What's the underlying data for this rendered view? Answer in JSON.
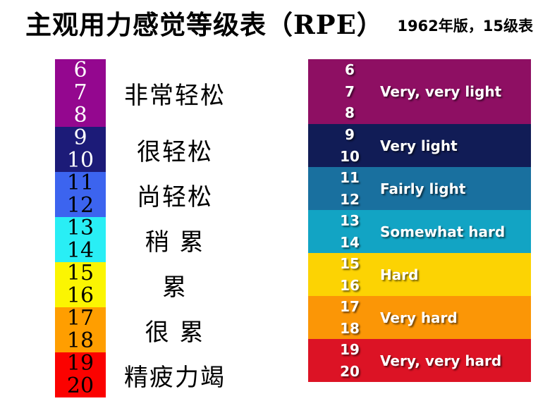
{
  "title": "主观用力感觉等级表（RPE）",
  "subtitle": "1962年版，15级表",
  "left_scale": {
    "description": "Chinese RPE scale column, ratings 6-20",
    "bands": [
      {
        "color": "#94078F",
        "number_color": "#FFFFFF",
        "numbers": [
          "6",
          "7",
          "8"
        ],
        "label": "非常轻松"
      },
      {
        "color": "#1C1B78",
        "number_color": "#FFFFFF",
        "numbers": [
          "9",
          "10"
        ],
        "label": "很轻松"
      },
      {
        "color": "#3C64EF",
        "number_color": "#000000",
        "numbers": [
          "11",
          "12"
        ],
        "label": "尚轻松"
      },
      {
        "color": "#29EEF5",
        "number_color": "#000000",
        "numbers": [
          "13",
          "14"
        ],
        "label": "稍 累"
      },
      {
        "color": "#FBF502",
        "number_color": "#000000",
        "numbers": [
          "15",
          "16"
        ],
        "label": "累"
      },
      {
        "color": "#FF9E00",
        "number_color": "#000000",
        "numbers": [
          "17",
          "18"
        ],
        "label": "很 累"
      },
      {
        "color": "#FB0200",
        "number_color": "#000000",
        "numbers": [
          "19",
          "20"
        ],
        "label": "精疲力竭"
      }
    ]
  },
  "right_scale": {
    "description": "English Borg RPE scale column, ratings 6-20",
    "bands": [
      {
        "color": "#8E0F63",
        "numbers": [
          "6",
          "7",
          "8"
        ],
        "label": "Very, very light"
      },
      {
        "color": "#111C56",
        "numbers": [
          "9",
          "10"
        ],
        "label": "Very light"
      },
      {
        "color": "#19709F",
        "numbers": [
          "11",
          "12"
        ],
        "label": "Fairly light"
      },
      {
        "color": "#12A4C4",
        "numbers": [
          "13",
          "14"
        ],
        "label": "Somewhat hard"
      },
      {
        "color": "#FCD303",
        "numbers": [
          "15",
          "16"
        ],
        "label": "Hard"
      },
      {
        "color": "#FB9606",
        "numbers": [
          "17",
          "18"
        ],
        "label": "Very hard"
      },
      {
        "color": "#DC1325",
        "numbers": [
          "19",
          "20"
        ],
        "label": "Very, very hard"
      }
    ]
  }
}
